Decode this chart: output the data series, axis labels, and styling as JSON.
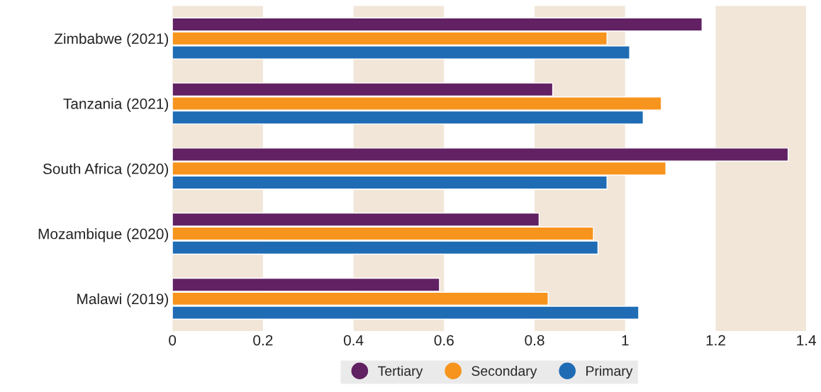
{
  "chart_data": {
    "type": "bar",
    "orientation": "horizontal",
    "categories": [
      "Zimbabwe (2021)",
      "Tanzania (2021)",
      "South Africa (2020)",
      "Mozambique (2020)",
      "Malawi (2019)"
    ],
    "series": [
      {
        "name": "Tertiary",
        "color": "#612163",
        "values": [
          1.17,
          0.84,
          1.36,
          0.81,
          0.59
        ]
      },
      {
        "name": "Secondary",
        "color": "#f7941d",
        "values": [
          0.96,
          1.08,
          1.09,
          0.93,
          0.83
        ]
      },
      {
        "name": "Primary",
        "color": "#1f6cb5",
        "values": [
          1.01,
          1.04,
          0.96,
          0.94,
          1.03
        ]
      }
    ],
    "xlim": [
      0,
      1.4
    ],
    "xticks": [
      0,
      0.2,
      0.4,
      0.6,
      0.8,
      1,
      1.2,
      1.4
    ],
    "bands": [
      {
        "axis": "x",
        "from": 0,
        "to": 0.2,
        "color": "#f2e6d8"
      },
      {
        "axis": "x",
        "from": 0.4,
        "to": 0.6,
        "color": "#f2e6d8"
      },
      {
        "axis": "x",
        "from": 0.8,
        "to": 1,
        "color": "#f2e6d8"
      },
      {
        "axis": "x",
        "from": 1.2,
        "to": 1.4,
        "color": "#f2e6d8"
      }
    ],
    "grid": false,
    "legend": "bottom",
    "marker": "circle"
  }
}
